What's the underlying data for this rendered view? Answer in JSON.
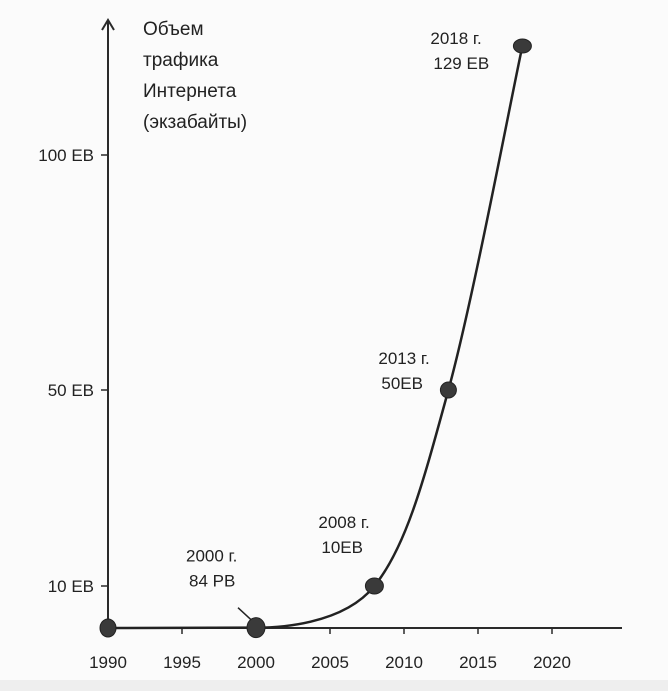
{
  "chart_data": {
    "type": "line",
    "title": [
      "Объем",
      "трафика",
      "Интернета",
      "(экзабайты)"
    ],
    "x_ticks": [
      "1990",
      "1995",
      "2000",
      "2005",
      "2010",
      "2015",
      "2020"
    ],
    "x_tick_values": [
      1990,
      1995,
      2000,
      2005,
      2010,
      2015,
      2020
    ],
    "y_ticks": [
      "10 EB",
      "50 EB",
      "100 EB"
    ],
    "y_tick_values": [
      10,
      50,
      100
    ],
    "xlim": [
      1990,
      2020
    ],
    "y_scale": "broken",
    "grid": false,
    "points": [
      {
        "x": 1990,
        "y": 0
      },
      {
        "x": 2000,
        "y": 0.084,
        "label": [
          "2000 г.",
          "84 PB"
        ]
      },
      {
        "x": 2008,
        "y": 10,
        "label": [
          "2008 г.",
          "10EB"
        ]
      },
      {
        "x": 2013,
        "y": 50,
        "label": [
          "2013 г.",
          "50EB"
        ]
      },
      {
        "x": 2018,
        "y": 129,
        "label": [
          "2018 г.",
          "129 EB"
        ]
      }
    ]
  }
}
